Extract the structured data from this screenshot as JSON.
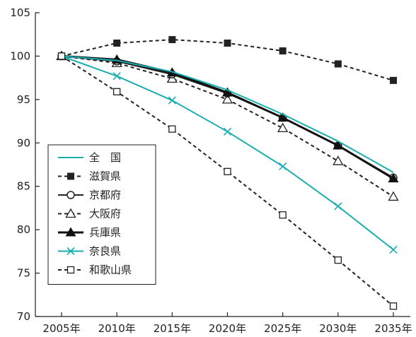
{
  "chart_data": {
    "type": "line",
    "title": "",
    "xlabel": "",
    "ylabel": "",
    "categories": [
      "2005年",
      "2010年",
      "2015年",
      "2020年",
      "2025年",
      "2030年",
      "2035年"
    ],
    "ylim": [
      70,
      105
    ],
    "yticks": [
      70,
      75,
      80,
      85,
      90,
      95,
      100,
      105
    ],
    "grid": false,
    "legend_position": "bottom-left",
    "series": [
      {
        "name": "全　国",
        "values": [
          100,
          99.5,
          98.2,
          96.1,
          93.3,
          90.2,
          86.6
        ],
        "color": "#1aaeb0",
        "dash": "solid",
        "marker": "none",
        "weight": "normal"
      },
      {
        "name": "滋賀県",
        "values": [
          100,
          101.5,
          101.9,
          101.5,
          100.6,
          99.1,
          97.2
        ],
        "color": "#222222",
        "dash": "dashed",
        "marker": "square-filled",
        "weight": "normal"
      },
      {
        "name": "京都府",
        "values": [
          100,
          99.4,
          97.9,
          95.7,
          92.9,
          89.7,
          86.0
        ],
        "color": "#222222",
        "dash": "solid",
        "marker": "circle-open",
        "weight": "normal"
      },
      {
        "name": "大阪府",
        "values": [
          100,
          99.2,
          97.4,
          95.0,
          91.7,
          87.9,
          83.8
        ],
        "color": "#222222",
        "dash": "dashed",
        "marker": "triangle-open",
        "weight": "normal"
      },
      {
        "name": "兵庫県",
        "values": [
          100,
          99.6,
          98.1,
          95.8,
          92.9,
          89.7,
          85.9
        ],
        "color": "#111111",
        "dash": "solid",
        "marker": "triangle-filled",
        "weight": "bold"
      },
      {
        "name": "奈良県",
        "values": [
          100,
          97.7,
          94.9,
          91.3,
          87.3,
          82.7,
          77.7
        ],
        "color": "#1aaeb0",
        "dash": "solid",
        "marker": "cross",
        "weight": "normal"
      },
      {
        "name": "和歌山県",
        "values": [
          100,
          95.9,
          91.6,
          86.7,
          81.7,
          76.5,
          71.2
        ],
        "color": "#222222",
        "dash": "dashed",
        "marker": "square-open",
        "weight": "normal"
      }
    ]
  }
}
